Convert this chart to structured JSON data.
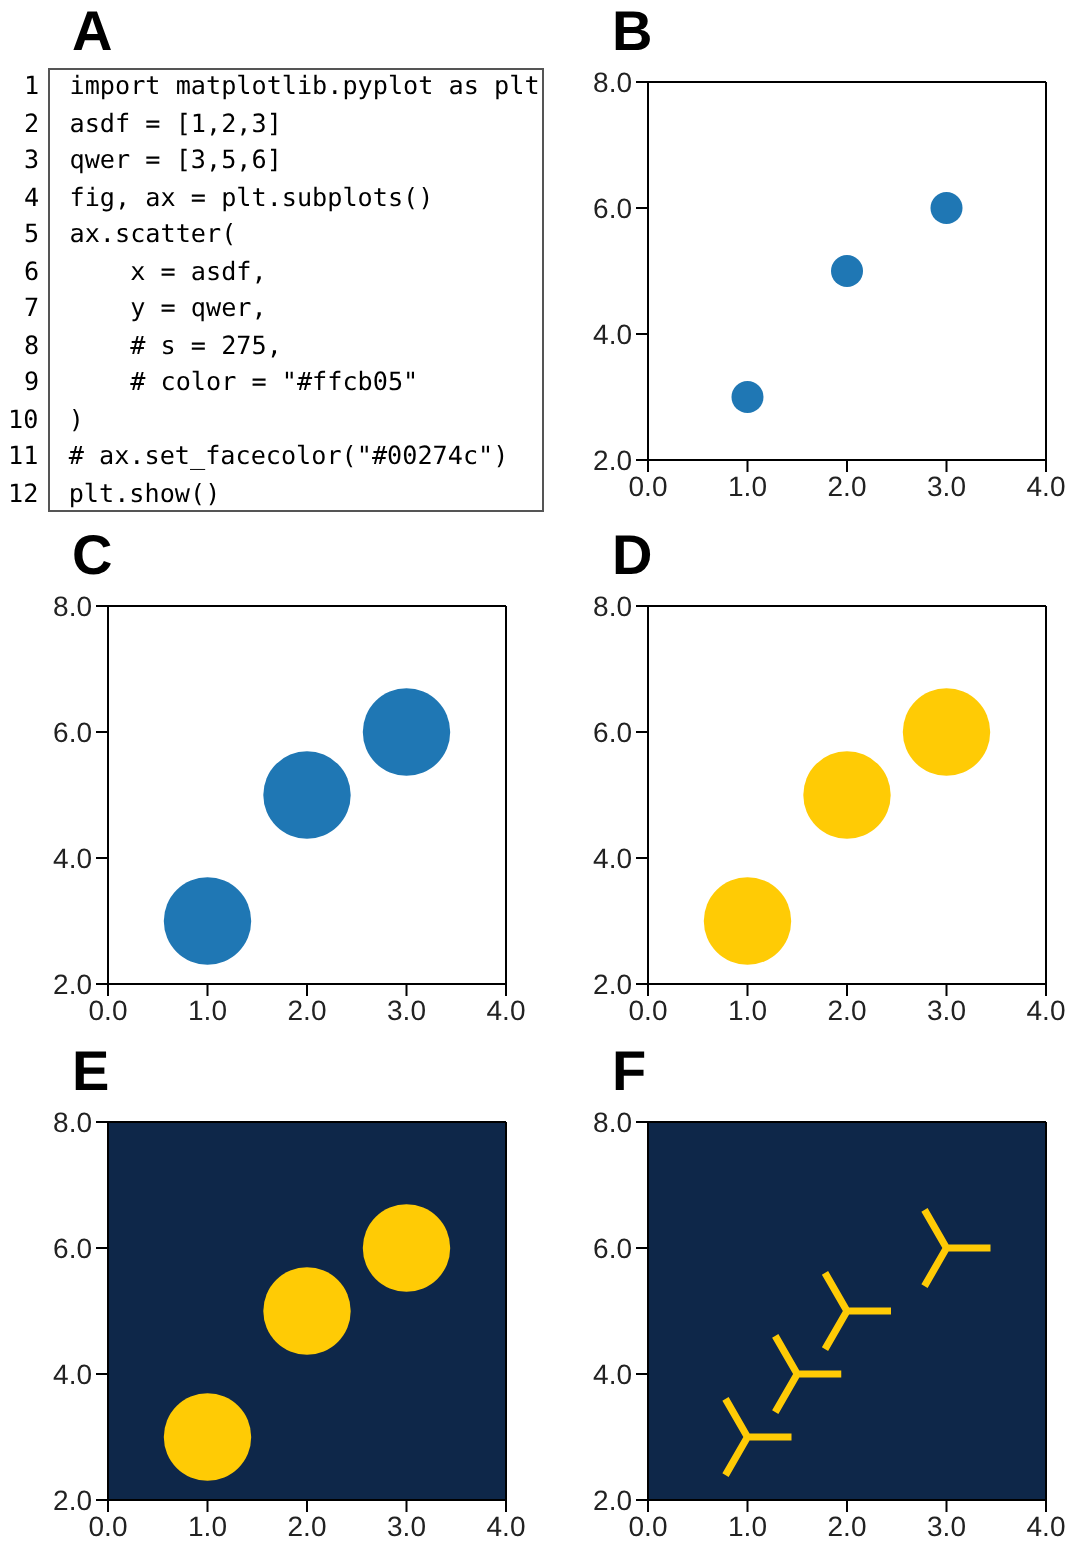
{
  "chart_data": [
    {
      "type": "other",
      "title": "A",
      "annotations": [
        "1 import matplotlib.pyplot as plt",
        "2 asdf = [1,2,3]",
        "3 qwer = [3,5,6]",
        "4 fig, ax = plt.subplots()",
        "5 ax.scatter(",
        "6     x = asdf,",
        "7     y = qwer,",
        "8     # s = 275,",
        "9     # color = \"#ffcb05\"",
        "10 )",
        "11 # ax.set_facecolor(\"#00274c\")",
        "12 plt.show()"
      ]
    },
    {
      "type": "scatter",
      "title": "B",
      "marker": "circle",
      "x": [
        1,
        2,
        3
      ],
      "series": [
        {
          "color": "#1f77b4",
          "values": [
            3,
            5,
            6
          ]
        }
      ],
      "xlim": [
        0,
        4
      ],
      "ylim": [
        2,
        8
      ],
      "xticks": [
        {
          "value": 0,
          "label": "0.0"
        },
        {
          "value": 1,
          "label": "1.0"
        },
        {
          "value": 2,
          "label": "2.0"
        },
        {
          "value": 3,
          "label": "3.0"
        },
        {
          "value": 4,
          "label": "4.0"
        }
      ],
      "yticks": [
        {
          "value": 2,
          "label": "2.0"
        },
        {
          "value": 4,
          "label": "4.0"
        },
        {
          "value": 6,
          "label": "6.0"
        },
        {
          "value": 8,
          "label": "8.0"
        }
      ]
    },
    {
      "type": "bubble",
      "title": "C",
      "marker": "circle",
      "x": [
        1,
        2,
        3
      ],
      "series": [
        {
          "color": "#1f77b4",
          "values": [
            3,
            5,
            6
          ],
          "sizes": [
            1,
            1,
            1
          ]
        }
      ],
      "xlim": [
        0,
        4
      ],
      "ylim": [
        2,
        8
      ],
      "xticks": [
        {
          "value": 0,
          "label": "0.0"
        },
        {
          "value": 1,
          "label": "1.0"
        },
        {
          "value": 2,
          "label": "2.0"
        },
        {
          "value": 3,
          "label": "3.0"
        },
        {
          "value": 4,
          "label": "4.0"
        }
      ],
      "yticks": [
        {
          "value": 2,
          "label": "2.0"
        },
        {
          "value": 4,
          "label": "4.0"
        },
        {
          "value": 6,
          "label": "6.0"
        },
        {
          "value": 8,
          "label": "8.0"
        }
      ]
    },
    {
      "type": "bubble",
      "title": "D",
      "marker": "circle",
      "x": [
        1,
        2,
        3
      ],
      "series": [
        {
          "color": "#ffcb05",
          "values": [
            3,
            5,
            6
          ],
          "sizes": [
            1,
            1,
            1
          ]
        }
      ],
      "xlim": [
        0,
        4
      ],
      "ylim": [
        2,
        8
      ],
      "xticks": [
        {
          "value": 0,
          "label": "0.0"
        },
        {
          "value": 1,
          "label": "1.0"
        },
        {
          "value": 2,
          "label": "2.0"
        },
        {
          "value": 3,
          "label": "3.0"
        },
        {
          "value": 4,
          "label": "4.0"
        }
      ],
      "yticks": [
        {
          "value": 2,
          "label": "2.0"
        },
        {
          "value": 4,
          "label": "4.0"
        },
        {
          "value": 6,
          "label": "6.0"
        },
        {
          "value": 8,
          "label": "8.0"
        }
      ]
    },
    {
      "type": "bubble",
      "title": "E",
      "marker": "circle",
      "x": [
        1,
        2,
        3
      ],
      "series": [
        {
          "color": "#ffcb05",
          "values": [
            3,
            5,
            6
          ],
          "sizes": [
            1,
            1,
            1
          ]
        }
      ],
      "bands": [
        {
          "axis": "y",
          "from": 2,
          "to": 8,
          "color": "#0e2749"
        }
      ],
      "xlim": [
        0,
        4
      ],
      "ylim": [
        2,
        8
      ],
      "xticks": [
        {
          "value": 0,
          "label": "0.0"
        },
        {
          "value": 1,
          "label": "1.0"
        },
        {
          "value": 2,
          "label": "2.0"
        },
        {
          "value": 3,
          "label": "3.0"
        },
        {
          "value": 4,
          "label": "4.0"
        }
      ],
      "yticks": [
        {
          "value": 2,
          "label": "2.0"
        },
        {
          "value": 4,
          "label": "4.0"
        },
        {
          "value": 6,
          "label": "6.0"
        },
        {
          "value": 8,
          "label": "8.0"
        }
      ]
    },
    {
      "type": "scatter",
      "title": "F",
      "marker": "cross",
      "x": [
        1,
        1.5,
        2,
        3
      ],
      "series": [
        {
          "color": "#ffcb05",
          "values": [
            3,
            4,
            5,
            6
          ]
        }
      ],
      "bands": [
        {
          "axis": "y",
          "from": 2,
          "to": 8,
          "color": "#0e2749"
        }
      ],
      "xlim": [
        0,
        4
      ],
      "ylim": [
        2,
        8
      ],
      "xticks": [
        {
          "value": 0,
          "label": "0.0"
        },
        {
          "value": 1,
          "label": "1.0"
        },
        {
          "value": 2,
          "label": "2.0"
        },
        {
          "value": 3,
          "label": "3.0"
        },
        {
          "value": 4,
          "label": "4.0"
        }
      ],
      "yticks": [
        {
          "value": 2,
          "label": "2.0"
        },
        {
          "value": 4,
          "label": "4.0"
        },
        {
          "value": 6,
          "label": "6.0"
        },
        {
          "value": 8,
          "label": "8.0"
        }
      ]
    }
  ]
}
